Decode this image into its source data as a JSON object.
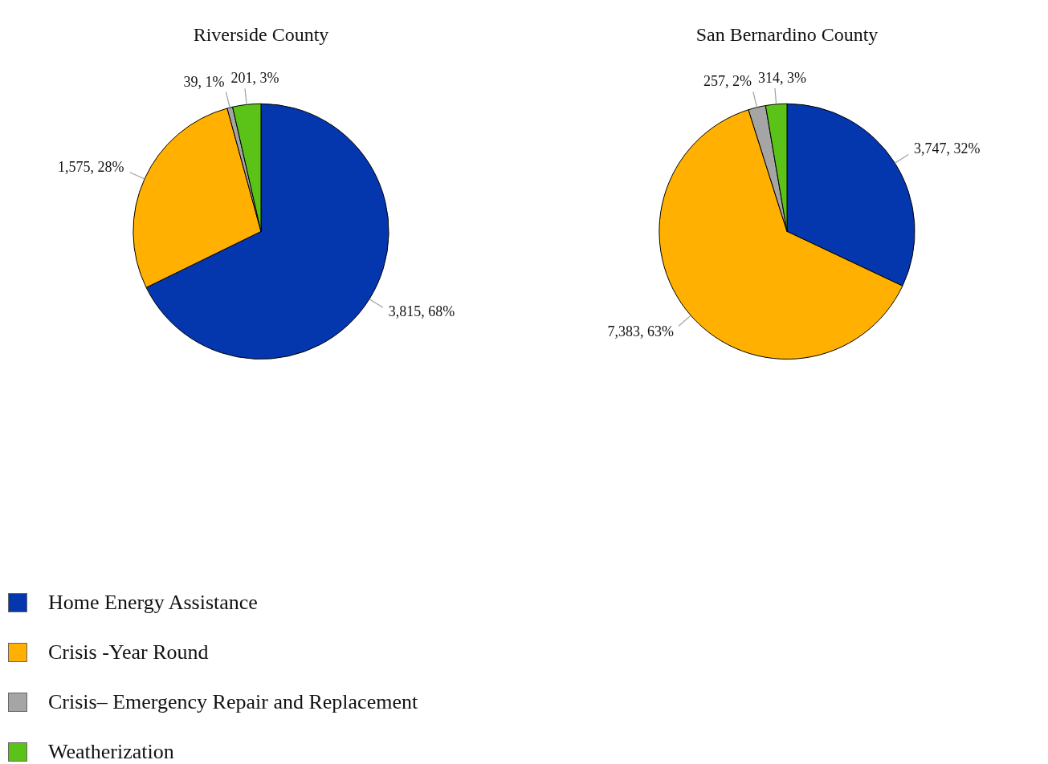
{
  "chart_data": [
    {
      "type": "pie",
      "title": "Riverside County",
      "categories": [
        "Home Energy Assistance",
        "Crisis -Year Round",
        "Crisis– Emergency Repair and Replacement",
        "Weatherization"
      ],
      "values": [
        3815,
        1575,
        39,
        201
      ],
      "colors": [
        "#0436ad",
        "#ffb000",
        "#a5a5a5",
        "#5bc317"
      ],
      "value_labels": [
        "3,815, 68%",
        "1,575, 28%",
        "39, 1%",
        "201, 3%"
      ],
      "legend": "bottom left"
    },
    {
      "type": "pie",
      "title": "San Bernardino County",
      "categories": [
        null,
        null,
        null,
        null
      ],
      "values": [
        3747,
        7383,
        257,
        314
      ],
      "colors": [
        "#0436ad",
        "#ffb000",
        "#a5a5a5",
        "#5bc317"
      ],
      "value_labels": [
        "3,747, 32%",
        "7,383, 63%",
        "257, 2%",
        "314, 3%"
      ]
    }
  ]
}
